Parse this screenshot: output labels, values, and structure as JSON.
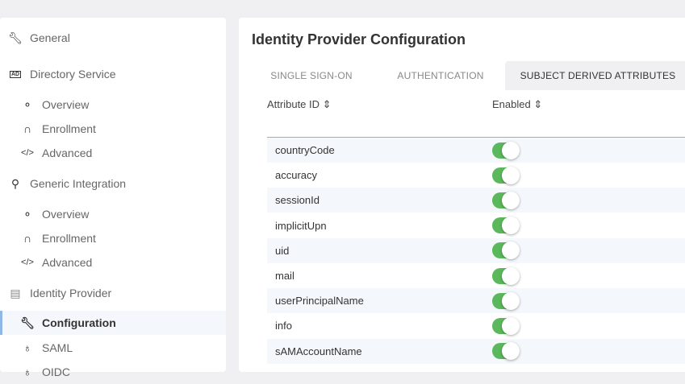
{
  "sidebar": {
    "items": [
      {
        "label": "General",
        "icon": "wrench-icon"
      },
      {
        "label": "Directory Service",
        "icon": "ad-icon"
      },
      {
        "label": "Overview",
        "icon": "overview-icon"
      },
      {
        "label": "Enrollment",
        "icon": "enrollment-icon"
      },
      {
        "label": "Advanced",
        "icon": "code-icon"
      },
      {
        "label": "Generic Integration",
        "icon": "plug-icon"
      },
      {
        "label": "Overview",
        "icon": "overview-icon"
      },
      {
        "label": "Enrollment",
        "icon": "enrollment-icon"
      },
      {
        "label": "Advanced",
        "icon": "code-icon"
      },
      {
        "label": "Identity Provider",
        "icon": "id-card-icon"
      },
      {
        "label": "Configuration",
        "icon": "wrench-icon",
        "active": true
      },
      {
        "label": "SAML",
        "icon": "lock-icon"
      },
      {
        "label": "OIDC",
        "icon": "lock-icon"
      }
    ]
  },
  "main": {
    "title": "Identity Provider Configuration",
    "tabs": [
      {
        "label": "SINGLE SIGN-ON"
      },
      {
        "label": "AUTHENTICATION"
      },
      {
        "label": "SUBJECT DERIVED ATTRIBUTES",
        "active": true
      }
    ],
    "columns": [
      "Attribute ID ⇕",
      "Enabled ⇕"
    ],
    "rows": [
      {
        "id": "countryCode",
        "enabled": true
      },
      {
        "id": "accuracy",
        "enabled": true
      },
      {
        "id": "sessionId",
        "enabled": true
      },
      {
        "id": "implicitUpn",
        "enabled": true
      },
      {
        "id": "uid",
        "enabled": true
      },
      {
        "id": "mail",
        "enabled": true
      },
      {
        "id": "userPrincipalName",
        "enabled": true
      },
      {
        "id": "info",
        "enabled": true
      },
      {
        "id": "sAMAccountName",
        "enabled": true
      }
    ]
  },
  "colors": {
    "toggle_on": "#5cb85c",
    "active_indicator": "#8fb8e8"
  }
}
